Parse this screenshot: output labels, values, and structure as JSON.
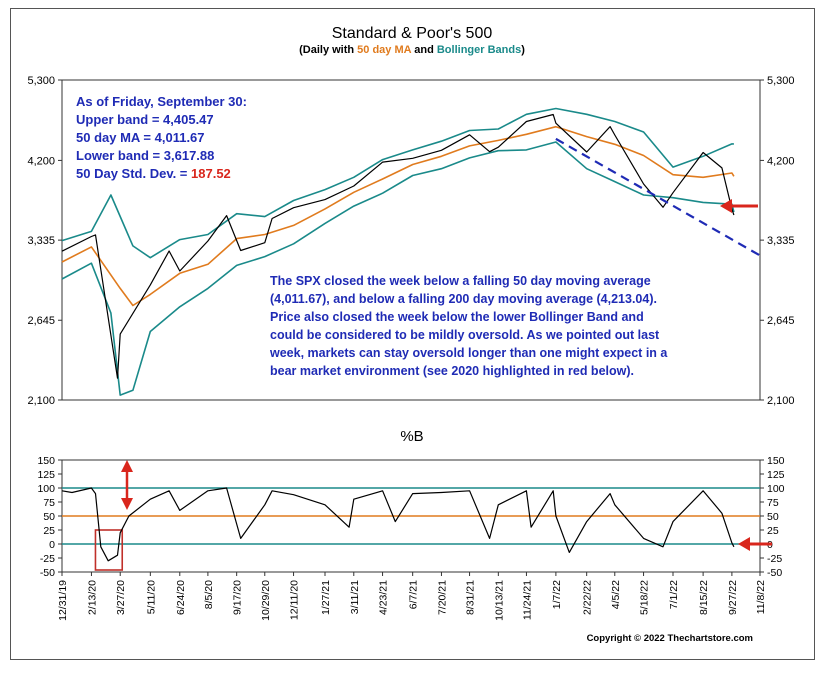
{
  "chart_data": [
    {
      "type": "line",
      "title": "Standard & Poor's 500",
      "subtitle": {
        "prefix": "(Daily with ",
        "ma_label": "50 day MA",
        "middle": " and ",
        "bb_label": "Bollinger Bands",
        "suffix": ")"
      },
      "y_scale": "log",
      "ylim": [
        2100,
        5300
      ],
      "yticks": [
        5300,
        4200,
        3335,
        2645,
        2100
      ],
      "ytick_labels": [
        "5,300",
        "4,200",
        "3,335",
        "2,645",
        "2,100"
      ],
      "x_tick_labels": [
        "12/31/19",
        "2/13/20",
        "3/27/20",
        "5/11/20",
        "6/24/20",
        "8/5/20",
        "9/17/20",
        "10/29/20",
        "12/11/20",
        "1/27/21",
        "3/11/21",
        "4/23/21",
        "6/7/21",
        "7/20/21",
        "8/31/21",
        "10/13/21",
        "11/24/21",
        "1/7/22",
        "2/22/22",
        "4/5/22",
        "5/18/22",
        "7/1/22",
        "8/15/22",
        "9/27/22",
        "11/8/22"
      ],
      "series": [
        {
          "name": "SPX",
          "color": "#000000",
          "x": [
            "12/31/19",
            "2/13/20",
            "2/19/20",
            "3/23/20",
            "3/27/20",
            "5/11/20",
            "6/8/20",
            "6/24/20",
            "8/5/20",
            "9/2/20",
            "9/23/20",
            "10/29/20",
            "11/9/20",
            "12/11/20",
            "1/27/21",
            "3/11/21",
            "4/23/21",
            "6/7/21",
            "7/20/21",
            "8/31/21",
            "9/30/21",
            "10/13/21",
            "11/24/21",
            "1/3/22",
            "1/7/22",
            "2/22/22",
            "3/29/22",
            "4/5/22",
            "5/18/22",
            "6/16/22",
            "7/1/22",
            "8/15/22",
            "9/12/22",
            "9/27/22",
            "9/30/22"
          ],
          "values": [
            3230,
            3370,
            3386,
            2237,
            2541,
            2930,
            3232,
            3050,
            3327,
            3580,
            3236,
            3310,
            3550,
            3663,
            3750,
            3900,
            4180,
            4226,
            4325,
            4523,
            4307,
            4364,
            4700,
            4796,
            4677,
            4304,
            4631,
            4520,
            3923,
            3667,
            3825,
            4297,
            4110,
            3647,
            3586
          ]
        },
        {
          "name": "50 day MA",
          "color": "#e07b1e",
          "x": [
            "12/31/19",
            "2/13/20",
            "3/27/20",
            "4/15/20",
            "5/11/20",
            "6/24/20",
            "8/5/20",
            "9/17/20",
            "10/29/20",
            "12/11/20",
            "1/27/21",
            "3/11/21",
            "4/23/21",
            "6/7/21",
            "7/20/21",
            "8/31/21",
            "10/13/21",
            "11/24/21",
            "1/7/22",
            "2/22/22",
            "4/5/22",
            "5/18/22",
            "7/1/22",
            "8/15/22",
            "9/27/22",
            "9/30/22"
          ],
          "values": [
            3130,
            3270,
            2900,
            2760,
            2850,
            3030,
            3110,
            3350,
            3390,
            3480,
            3650,
            3830,
            3980,
            4150,
            4250,
            4380,
            4450,
            4530,
            4630,
            4500,
            4400,
            4260,
            4030,
            4000,
            4050,
            4011.67
          ]
        },
        {
          "name": "Upper Bollinger Band",
          "color": "#1a8a8a",
          "x": [
            "12/31/19",
            "2/13/20",
            "3/13/20",
            "4/15/20",
            "5/11/20",
            "6/24/20",
            "8/5/20",
            "9/17/20",
            "10/29/20",
            "12/11/20",
            "1/27/21",
            "3/11/21",
            "4/23/21",
            "6/7/21",
            "7/20/21",
            "8/31/21",
            "10/13/21",
            "11/24/21",
            "1/7/22",
            "2/22/22",
            "4/5/22",
            "5/18/22",
            "7/1/22",
            "8/15/22",
            "9/27/22",
            "9/30/22"
          ],
          "values": [
            3330,
            3420,
            3800,
            3280,
            3170,
            3340,
            3390,
            3600,
            3570,
            3740,
            3860,
            4000,
            4210,
            4330,
            4440,
            4580,
            4600,
            4800,
            4880,
            4800,
            4700,
            4560,
            4120,
            4250,
            4405.47,
            4405.47
          ]
        },
        {
          "name": "Lower Bollinger Band",
          "color": "#1a8a8a",
          "x": [
            "12/31/19",
            "2/13/20",
            "3/13/20",
            "3/27/20",
            "4/15/20",
            "5/11/20",
            "6/24/20",
            "8/5/20",
            "9/17/20",
            "10/29/20",
            "12/11/20",
            "1/27/21",
            "3/11/21",
            "4/23/21",
            "6/7/21",
            "7/20/21",
            "8/31/21",
            "10/13/21",
            "11/24/21",
            "1/7/22",
            "2/22/22",
            "4/5/22",
            "5/18/22",
            "7/1/22",
            "8/15/22",
            "9/27/22",
            "9/30/22"
          ],
          "values": [
            2980,
            3120,
            2700,
            2130,
            2160,
            2560,
            2750,
            2900,
            3100,
            3180,
            3300,
            3500,
            3680,
            3820,
            4020,
            4100,
            4230,
            4320,
            4330,
            4430,
            4100,
            3950,
            3800,
            3770,
            3720,
            3700,
            3617.88
          ]
        }
      ],
      "trendline": {
        "color": "#1f2bb5",
        "x": [
          "1/7/22",
          "11/8/22"
        ],
        "values": [
          4470,
          3190
        ]
      },
      "annotations": {
        "info_box": {
          "line1": "As of Friday, September 30:",
          "line2": "Upper band = 4,405.47",
          "line3": "50 day MA = 4,011.67",
          "line4": "Lower band = 3,617.88",
          "line5_prefix": "50 Day Std. Dev. = ",
          "line5_value": "187.52"
        },
        "commentary": [
          "The SPX closed the week below a falling 50 day moving average",
          "(4,011.67), and below a falling 200 day moving average (4,213.04).",
          "Price also closed the week below the lower Bollinger Band and",
          "could be considered to be mildly oversold.  As we pointed out last",
          "week, markets can stay oversold longer than one might expect in a",
          "bear market environment (see 2020 highlighted in red below)."
        ]
      }
    },
    {
      "type": "line",
      "title": "%B",
      "ylim": [
        -50,
        150
      ],
      "yticks": [
        150,
        125,
        100,
        75,
        50,
        25,
        0,
        -25,
        -50
      ],
      "ytick_labels_left": [
        "150",
        "125",
        "100",
        "75",
        "50",
        "25",
        "0",
        "-25",
        "-50"
      ],
      "ytick_labels_right": [
        "150",
        "125",
        "100",
        "75",
        "50",
        "25",
        "0",
        "-25",
        "-50"
      ],
      "reference_lines": [
        {
          "value": 100,
          "color": "#1a8a8a"
        },
        {
          "value": 50,
          "color": "#e07b1e"
        },
        {
          "value": 0,
          "color": "#1a8a8a"
        }
      ],
      "series": [
        {
          "name": "%B",
          "color": "#000000",
          "x": [
            "12/31/19",
            "1/15/20",
            "2/13/20",
            "2/19/20",
            "2/27/20",
            "3/9/20",
            "3/23/20",
            "3/27/20",
            "4/9/20",
            "5/11/20",
            "6/8/20",
            "6/24/20",
            "8/5/20",
            "9/2/20",
            "9/23/20",
            "10/29/20",
            "11/9/20",
            "12/11/20",
            "1/27/21",
            "3/4/21",
            "3/11/21",
            "4/23/21",
            "5/12/21",
            "6/7/21",
            "7/20/21",
            "8/31/21",
            "9/30/21",
            "10/13/21",
            "11/24/21",
            "12/1/21",
            "1/3/22",
            "1/7/22",
            "1/27/22",
            "2/22/22",
            "3/29/22",
            "4/5/22",
            "5/18/22",
            "6/16/22",
            "7/1/22",
            "8/15/22",
            "9/12/22",
            "9/27/22",
            "9/30/22"
          ],
          "values": [
            95,
            92,
            100,
            90,
            -5,
            -30,
            -20,
            20,
            50,
            80,
            95,
            60,
            95,
            100,
            10,
            70,
            95,
            88,
            70,
            30,
            80,
            95,
            40,
            90,
            92,
            95,
            10,
            70,
            95,
            30,
            95,
            50,
            -15,
            40,
            90,
            70,
            10,
            -5,
            40,
            95,
            55,
            2,
            -5
          ]
        }
      ],
      "highlight_box": {
        "x_start": "2/19/20",
        "x_end": "3/30/20",
        "color": "#c0302a"
      },
      "x_tick_labels": [
        "12/31/19",
        "2/13/20",
        "3/27/20",
        "5/11/20",
        "6/24/20",
        "8/5/20",
        "9/17/20",
        "10/29/20",
        "12/11/20",
        "1/27/21",
        "3/11/21",
        "4/23/21",
        "6/7/21",
        "7/20/21",
        "8/31/21",
        "10/13/21",
        "11/24/21",
        "1/7/22",
        "2/22/22",
        "4/5/22",
        "5/18/22",
        "7/1/22",
        "8/15/22",
        "9/27/22",
        "11/8/22"
      ]
    }
  ],
  "footer": {
    "copyright": "Copyright © 2022 Thechartstore.com"
  },
  "colors": {
    "price": "#000000",
    "ma": "#e07b1e",
    "bands": "#1a8a8a",
    "trendline": "#1f2bb5",
    "annotation_text": "#1f2bb5",
    "alert_red": "#d9261c"
  }
}
